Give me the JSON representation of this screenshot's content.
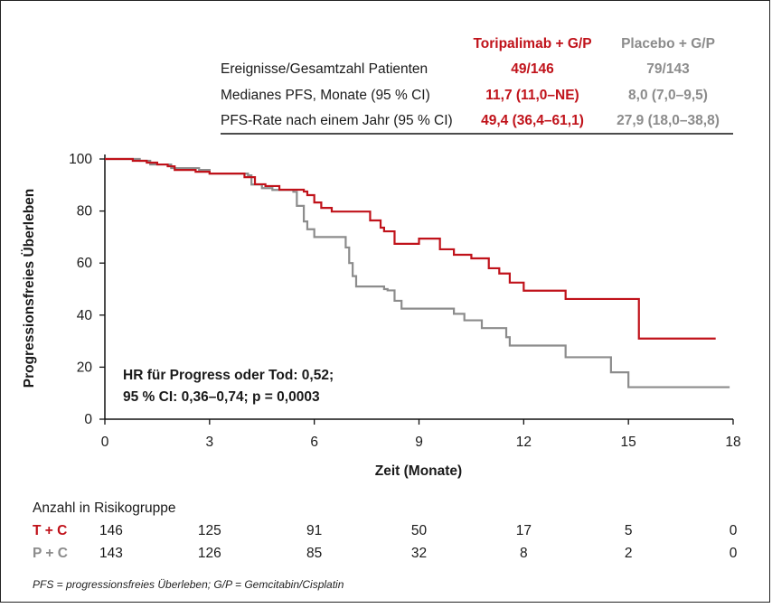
{
  "chart_data": {
    "type": "line",
    "xlabel": "Zeit (Monate)",
    "ylabel": "Progressionsfreies Überleben",
    "xlim": [
      0,
      18
    ],
    "ylim": [
      0,
      100
    ],
    "xticks": [
      "0",
      "3",
      "6",
      "9",
      "12",
      "15",
      "18"
    ],
    "yticks": [
      "0",
      "20",
      "40",
      "60",
      "80",
      "100"
    ],
    "series": [
      {
        "name": "Toripalimab + G/P",
        "color": "#c0121a",
        "points": [
          [
            0,
            100
          ],
          [
            0.8,
            99.3
          ],
          [
            1.2,
            98.6
          ],
          [
            1.5,
            97.9
          ],
          [
            1.8,
            97.2
          ],
          [
            2,
            95.8
          ],
          [
            2.6,
            95.1
          ],
          [
            3,
            94.4
          ],
          [
            4,
            93
          ],
          [
            4.3,
            90.3
          ],
          [
            4.6,
            89.6
          ],
          [
            5,
            88.2
          ],
          [
            5.7,
            87.5
          ],
          [
            5.8,
            86.1
          ],
          [
            6,
            83.3
          ],
          [
            6.2,
            81.2
          ],
          [
            6.5,
            79.8
          ],
          [
            7.6,
            76.4
          ],
          [
            7.9,
            73.6
          ],
          [
            8,
            72.2
          ],
          [
            9,
            69.4
          ],
          [
            8.3,
            67.4
          ],
          [
            9.6,
            65.3
          ],
          [
            10,
            63.2
          ],
          [
            10.5,
            61.8
          ],
          [
            11,
            58
          ],
          [
            11.3,
            56
          ],
          [
            11.6,
            52.5
          ],
          [
            12,
            49.4
          ],
          [
            13.2,
            46.2
          ],
          [
            15.3,
            46
          ],
          [
            15.3,
            31
          ],
          [
            17.5,
            31
          ]
        ]
      },
      {
        "name": "Placebo + G/P",
        "color": "#8c8c8c",
        "points": [
          [
            0,
            100
          ],
          [
            1,
            99.3
          ],
          [
            1.3,
            97.9
          ],
          [
            1.9,
            96.5
          ],
          [
            2.7,
            95.8
          ],
          [
            3,
            94.4
          ],
          [
            4.1,
            93.7
          ],
          [
            4.2,
            90.2
          ],
          [
            4.5,
            88.8
          ],
          [
            4.8,
            88.1
          ],
          [
            5.4,
            87.4
          ],
          [
            5.5,
            82
          ],
          [
            5.7,
            76
          ],
          [
            5.8,
            73
          ],
          [
            6,
            70
          ],
          [
            6.9,
            66
          ],
          [
            7,
            60
          ],
          [
            7.1,
            55
          ],
          [
            7.2,
            51
          ],
          [
            8,
            50
          ],
          [
            8.1,
            49.5
          ],
          [
            8.3,
            45.5
          ],
          [
            8.5,
            42.5
          ],
          [
            10,
            40.5
          ],
          [
            10.3,
            38
          ],
          [
            10.8,
            35
          ],
          [
            11.5,
            31.5
          ],
          [
            11.6,
            28.3
          ],
          [
            13.2,
            23.8
          ],
          [
            14.5,
            18
          ],
          [
            15,
            12.3
          ],
          [
            17.9,
            12.3
          ]
        ]
      }
    ],
    "table": {
      "headers": [
        "Toripalimab + G/P",
        "Placebo + G/P"
      ],
      "rows": [
        {
          "label": "Ereignisse/Gesamtzahl Patienten",
          "tc": "49/146",
          "pc": "79/143"
        },
        {
          "label": "Medianes PFS, Monate (95 % CI)",
          "tc": "11,7 (11,0–NE)",
          "pc": "8,0 (7,0–9,5)"
        },
        {
          "label": "PFS-Rate nach einem Jahr (95 % CI)",
          "tc": "49,4 (36,4–61,1)",
          "pc": "27,9 (18,0–38,8)"
        }
      ]
    },
    "annotation": [
      "HR für Progress oder Tod: 0,52;",
      "95 % CI: 0,36–0,74; p = 0,0003"
    ],
    "risk": {
      "title": "Anzahl in Risikogruppe",
      "times": [
        0,
        3,
        6,
        9,
        12,
        15,
        18
      ],
      "groups": [
        {
          "label": "T + C",
          "color": "#c0121a",
          "values": [
            "146",
            "125",
            "91",
            "50",
            "17",
            "5",
            "0"
          ]
        },
        {
          "label": "P + C",
          "color": "#8c8c8c",
          "values": [
            "143",
            "126",
            "85",
            "32",
            "8",
            "2",
            "0"
          ]
        }
      ]
    },
    "footnote": "PFS = progressionsfreies Überleben; G/P = Gemcitabin/Cisplatin"
  }
}
